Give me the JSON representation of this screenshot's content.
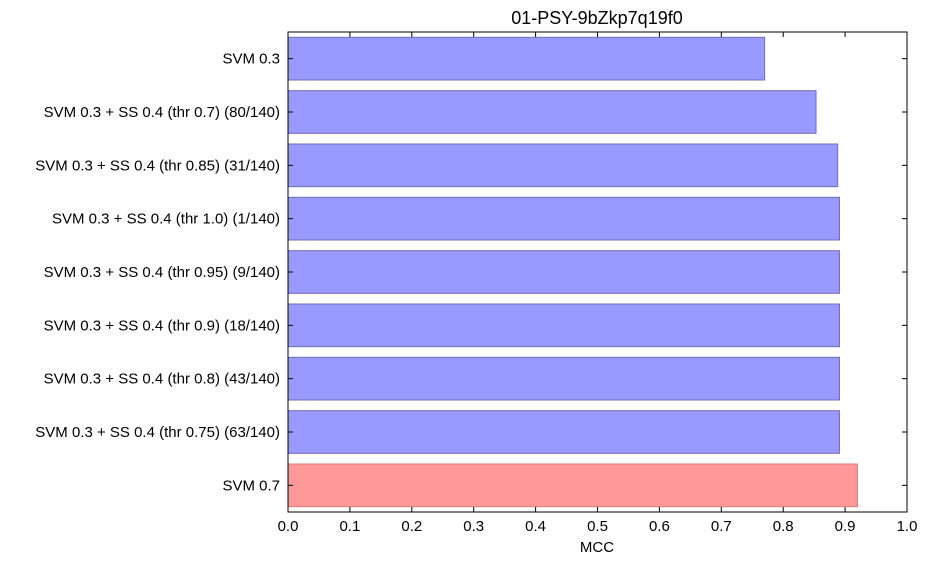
{
  "chart_data": {
    "type": "bar",
    "orientation": "horizontal",
    "title": "01-PSY-9bZkp7q19f0",
    "xlabel": "MCC",
    "ylabel": "",
    "xlim": [
      0.0,
      1.0
    ],
    "xticks": [
      "0.0",
      "0.1",
      "0.2",
      "0.3",
      "0.4",
      "0.5",
      "0.6",
      "0.7",
      "0.8",
      "0.9",
      "1.0"
    ],
    "categories": [
      "SVM 0.3",
      "SVM 0.3 + SS 0.4 (thr 0.7) (80/140)",
      "SVM 0.3 + SS 0.4 (thr 0.85) (31/140)",
      "SVM 0.3 + SS 0.4 (thr 1.0) (1/140)",
      "SVM 0.3 + SS 0.4 (thr 0.95) (9/140)",
      "SVM 0.3 + SS 0.4 (thr 0.9) (18/140)",
      "SVM 0.3 + SS 0.4 (thr 0.8) (43/140)",
      "SVM 0.3 + SS 0.4 (thr 0.75) (63/140)",
      "SVM 0.7"
    ],
    "values": [
      0.77,
      0.853,
      0.888,
      0.891,
      0.891,
      0.891,
      0.891,
      0.891,
      0.92
    ],
    "colors": [
      "#9999ff",
      "#9999ff",
      "#9999ff",
      "#9999ff",
      "#9999ff",
      "#9999ff",
      "#9999ff",
      "#9999ff",
      "#ff9999"
    ],
    "edge_colors": [
      "#6f6fb8",
      "#6f6fb8",
      "#6f6fb8",
      "#6f6fb8",
      "#6f6fb8",
      "#6f6fb8",
      "#6f6fb8",
      "#6f6fb8",
      "#e07a7a"
    ],
    "grid": false,
    "legend": "none"
  }
}
